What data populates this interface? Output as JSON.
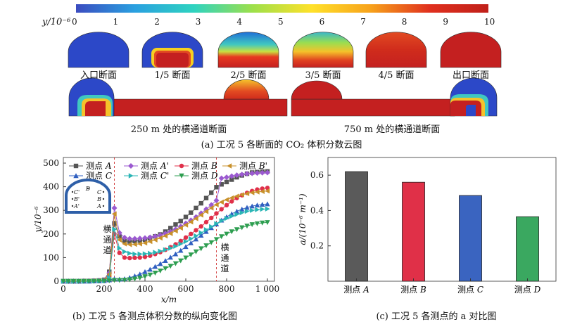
{
  "colorbar": {
    "label": "y/10⁻⁶",
    "ticks": [
      "0",
      "1",
      "2",
      "3",
      "4",
      "5",
      "6",
      "7",
      "8",
      "9",
      "10"
    ],
    "colors": [
      "#3b4cc0",
      "#2aa0e0",
      "#2ed3c0",
      "#9de04a",
      "#ffe12a",
      "#f7a21b",
      "#e0301e",
      "#c0201a"
    ]
  },
  "sections_row1": [
    {
      "label": "入口断面",
      "level": 0.0
    },
    {
      "label": "1/5 断面",
      "level": 0.2
    },
    {
      "label": "2/5 断面",
      "level": 0.4
    },
    {
      "label": "3/5 断面",
      "level": 0.6
    },
    {
      "label": "4/5 断面",
      "level": 0.8
    },
    {
      "label": "出口断面",
      "level": 1.0
    }
  ],
  "sections_row2": [
    {
      "label": "250 m 处的横通道断面"
    },
    {
      "label": "750 m 处的横通道断面"
    }
  ],
  "caption_a": "(a) 工况 5 各断面的 CO₂ 体积分数云图",
  "caption_b": "(b) 工况 5 各测点体积分数的纵向变化图",
  "caption_c": "(c) 工况 5 各测点的 a 对比图",
  "chart_data": [
    {
      "type": "line",
      "xlabel": "x/m",
      "ylabel": "y/10⁻⁶",
      "xlim": [
        0,
        1000
      ],
      "ylim": [
        0,
        500
      ],
      "xticks": [
        "0",
        "200",
        "400",
        "600",
        "800",
        "1 000"
      ],
      "yticks": [
        "0",
        "100",
        "200",
        "300",
        "400",
        "500"
      ],
      "annotations": [
        "横通道",
        "横通道"
      ],
      "inset_labels": [
        "C'",
        "D",
        "C",
        "B'",
        "B",
        "A'",
        "A"
      ],
      "x": [
        0,
        25,
        50,
        75,
        100,
        125,
        150,
        175,
        200,
        225,
        250,
        275,
        300,
        325,
        350,
        375,
        400,
        425,
        450,
        475,
        500,
        525,
        550,
        575,
        600,
        625,
        650,
        675,
        700,
        725,
        750,
        775,
        800,
        825,
        850,
        875,
        900,
        925,
        950,
        975,
        1000
      ],
      "series": [
        {
          "name": "测点 A",
          "color": "#555555",
          "marker": "square",
          "values": [
            0,
            0,
            0,
            0,
            1,
            1,
            2,
            3,
            6,
            40,
            245,
            190,
            170,
            168,
            170,
            172,
            176,
            182,
            190,
            198,
            210,
            225,
            240,
            255,
            272,
            290,
            310,
            330,
            352,
            375,
            398,
            410,
            420,
            430,
            440,
            448,
            455,
            460,
            462,
            464,
            465
          ]
        },
        {
          "name": "测点 A'",
          "color": "#9b59d0",
          "marker": "diamond",
          "values": [
            0,
            0,
            0,
            0,
            1,
            1,
            2,
            3,
            5,
            35,
            310,
            205,
            185,
            180,
            180,
            181,
            183,
            186,
            190,
            195,
            202,
            210,
            220,
            232,
            245,
            258,
            272,
            288,
            305,
            323,
            342,
            436,
            440,
            445,
            449,
            452,
            455,
            457,
            458,
            459,
            460
          ]
        },
        {
          "name": "测点 B",
          "color": "#e0304a",
          "marker": "circle",
          "values": [
            0,
            0,
            0,
            0,
            0,
            1,
            1,
            2,
            4,
            20,
            200,
            120,
            100,
            98,
            99,
            100,
            103,
            108,
            115,
            123,
            133,
            144,
            156,
            170,
            185,
            200,
            216,
            232,
            250,
            268,
            287,
            305,
            322,
            338,
            352,
            364,
            374,
            382,
            388,
            392,
            395
          ]
        },
        {
          "name": "测点 B'",
          "color": "#c8902a",
          "marker": "left-triangle",
          "values": [
            0,
            0,
            0,
            0,
            1,
            1,
            2,
            3,
            5,
            30,
            285,
            175,
            158,
            155,
            156,
            158,
            162,
            168,
            175,
            183,
            192,
            202,
            213,
            225,
            238,
            251,
            265,
            280,
            295,
            310,
            324,
            335,
            345,
            353,
            360,
            366,
            371,
            375,
            378,
            380,
            382
          ]
        },
        {
          "name": "测点 C",
          "color": "#2f5fc0",
          "marker": "up-triangle",
          "values": [
            0,
            0,
            0,
            0,
            0,
            0,
            1,
            1,
            2,
            5,
            10,
            8,
            10,
            15,
            22,
            30,
            40,
            50,
            62,
            74,
            87,
            101,
            115,
            130,
            146,
            162,
            178,
            194,
            210,
            226,
            242,
            258,
            272,
            285,
            296,
            305,
            312,
            318,
            322,
            325,
            327
          ]
        },
        {
          "name": "测点 C'",
          "color": "#2ab5b5",
          "marker": "right-triangle",
          "values": [
            0,
            0,
            0,
            0,
            0,
            1,
            1,
            2,
            3,
            15,
            220,
            140,
            125,
            118,
            115,
            115,
            116,
            118,
            122,
            127,
            133,
            140,
            148,
            158,
            168,
            180,
            192,
            205,
            218,
            231,
            244,
            256,
            266,
            275,
            283,
            290,
            296,
            300,
            303,
            305,
            306
          ]
        },
        {
          "name": "测点 D",
          "color": "#2e9e50",
          "marker": "down-triangle",
          "values": [
            0,
            0,
            0,
            0,
            0,
            0,
            0,
            1,
            1,
            2,
            4,
            4,
            5,
            7,
            10,
            14,
            20,
            27,
            35,
            44,
            54,
            64,
            75,
            87,
            99,
            112,
            125,
            138,
            151,
            164,
            177,
            189,
            200,
            210,
            219,
            227,
            234,
            240,
            244,
            247,
            249
          ]
        }
      ]
    },
    {
      "type": "bar",
      "ylabel": "a/(10⁻⁶ m⁻¹)",
      "ylim": [
        0,
        0.7
      ],
      "yticks": [
        "0.2",
        "0.4",
        "0.6"
      ],
      "categories": [
        "测点 A",
        "测点 B",
        "测点 C",
        "测点 D"
      ],
      "values": [
        0.62,
        0.56,
        0.485,
        0.365
      ],
      "colors": [
        "#5a5a5a",
        "#e03048",
        "#3a64c0",
        "#3aa860"
      ]
    }
  ]
}
